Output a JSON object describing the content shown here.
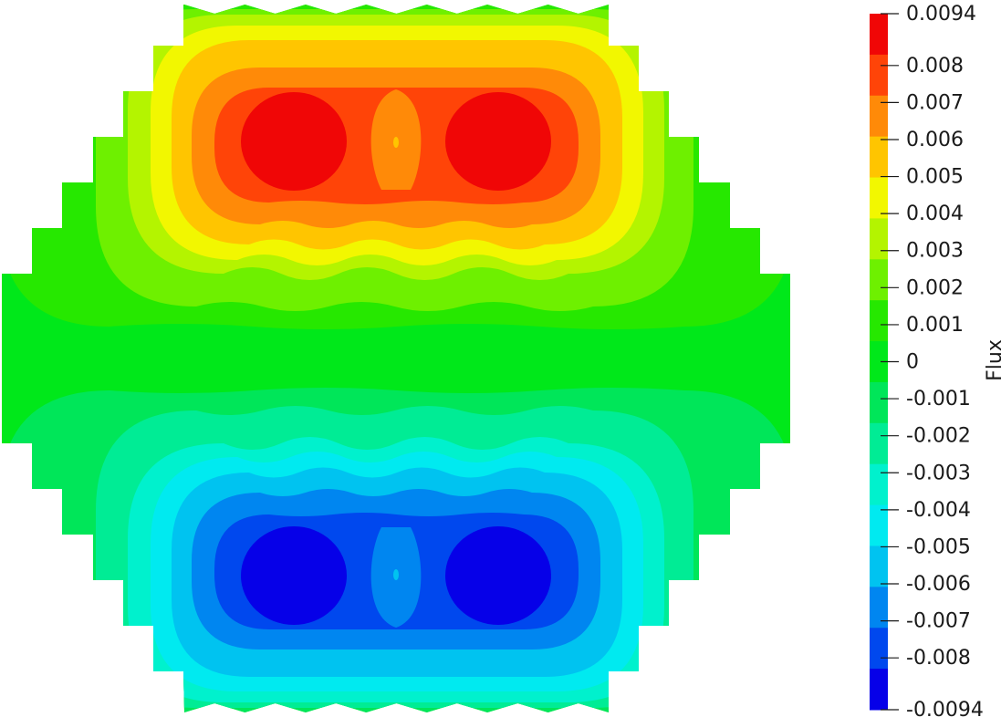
{
  "chart_data": {
    "type": "heatmap",
    "field_name": "Flux",
    "range": [
      -0.0094,
      0.0094
    ],
    "colorbar": {
      "title": "Flux",
      "position": "right",
      "tick_values": [
        0.0094,
        0.008,
        0.007,
        0.006,
        0.005,
        0.004,
        0.003,
        0.002,
        0.001,
        0,
        -0.001,
        -0.002,
        -0.003,
        -0.004,
        -0.005,
        -0.006,
        -0.007,
        -0.008,
        -0.0094
      ],
      "tick_labels": [
        "0.0094",
        "0.008",
        "0.007",
        "0.006",
        "0.005",
        "0.004",
        "0.003",
        "0.002",
        "0.001",
        "0",
        "-0.001",
        "-0.002",
        "-0.003",
        "-0.004",
        "-0.005",
        "-0.006",
        "-0.007",
        "-0.008",
        "-0.0094"
      ],
      "band_colors_top_to_bottom": [
        "#f00606",
        "#ff4408",
        "#ff8a08",
        "#ffc500",
        "#f2f700",
        "#b4f400",
        "#6ef000",
        "#26e800",
        "#00e81a",
        "#00e659",
        "#00ec95",
        "#00f1cd",
        "#00eaf0",
        "#00c3f0",
        "#0086f0",
        "#0048ee",
        "#0600e8"
      ]
    },
    "domain": {
      "shape": "stepped hexagon",
      "background_value": 0,
      "lobes": [
        {
          "sign": "positive",
          "position": "upper-left",
          "peak_value": 0.0094
        },
        {
          "sign": "positive",
          "position": "upper-right",
          "peak_value": 0.0094
        },
        {
          "sign": "negative",
          "position": "lower-left",
          "peak_value": -0.0094
        },
        {
          "sign": "negative",
          "position": "lower-right",
          "peak_value": -0.0094
        }
      ]
    }
  }
}
